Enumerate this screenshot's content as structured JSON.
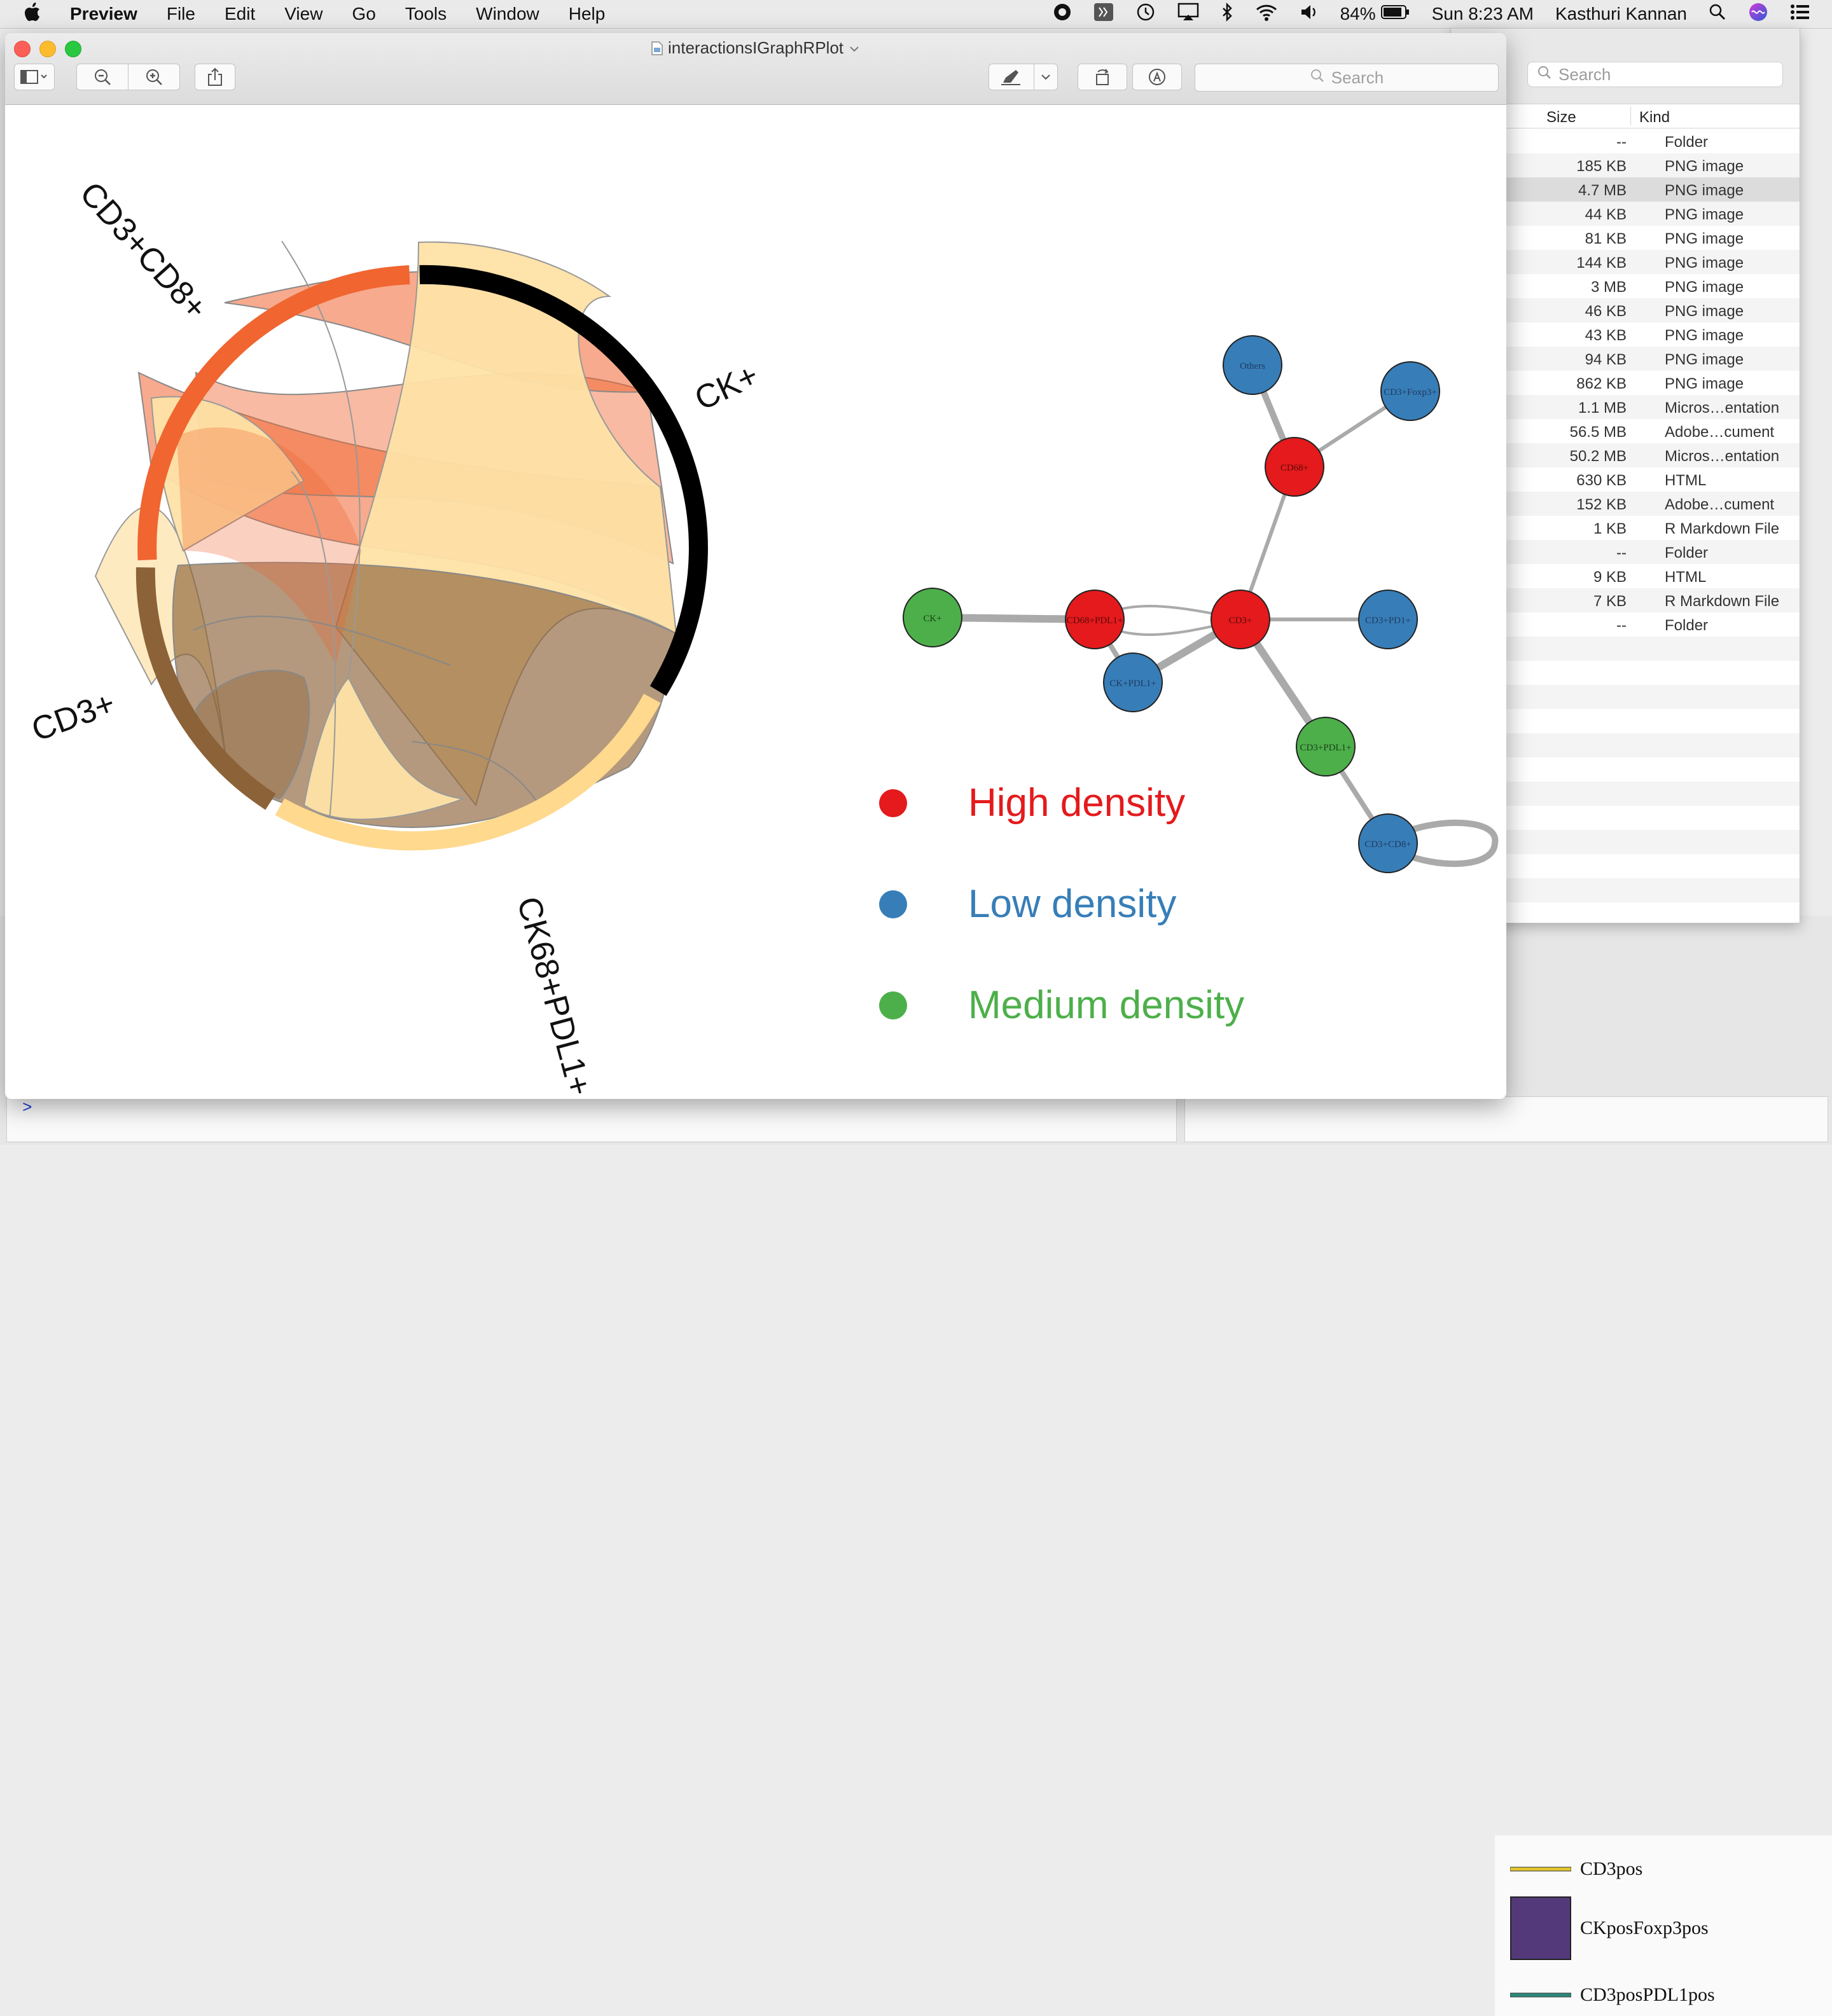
{
  "menubar": {
    "app_name": "Preview",
    "menus": [
      "File",
      "Edit",
      "View",
      "Go",
      "Tools",
      "Window",
      "Help"
    ],
    "battery": "84%",
    "clock": "Sun 8:23 AM",
    "user": "Kasthuri Kannan"
  },
  "preview": {
    "title": "interactionsIGraphRPlot",
    "search_placeholder": "Search"
  },
  "chord": {
    "segments": [
      "CK+",
      "CK68+PDL1+",
      "CD3+",
      "CD3+CD8+"
    ],
    "colors": {
      "CK+": "#000000",
      "CK68+PDL1+": "#fed98e",
      "CD3+": "#8c6239",
      "CD3+CD8+": "#f06530"
    }
  },
  "network": {
    "nodes": [
      "Others",
      "CD3+Foxp3+",
      "CD68+",
      "CK+",
      "CD68+PDL1+",
      "CD3+",
      "CD3+PD1+",
      "CK+PDL1+",
      "CD3+PDL1+",
      "CD3+CD8+"
    ]
  },
  "legend": {
    "high": "High density",
    "low": "Low density",
    "medium": "Medium density",
    "colors": {
      "high": "#e41a1c",
      "low": "#377eb8",
      "medium": "#4daf4a"
    }
  },
  "finder": {
    "search_placeholder": "Search",
    "columns": {
      "size": "Size",
      "kind": "Kind"
    },
    "rows": [
      {
        "size": "--",
        "kind": "Folder"
      },
      {
        "size": "185 KB",
        "kind": "PNG image"
      },
      {
        "size": "4.7 MB",
        "kind": "PNG image"
      },
      {
        "size": "44 KB",
        "kind": "PNG image"
      },
      {
        "size": "81 KB",
        "kind": "PNG image"
      },
      {
        "size": "144 KB",
        "kind": "PNG image"
      },
      {
        "size": "3 MB",
        "kind": "PNG image"
      },
      {
        "size": "46 KB",
        "kind": "PNG image"
      },
      {
        "size": "43 KB",
        "kind": "PNG image"
      },
      {
        "size": "94 KB",
        "kind": "PNG image"
      },
      {
        "size": "862 KB",
        "kind": "PNG image"
      },
      {
        "size": "1.1 MB",
        "kind": "Micros…entation"
      },
      {
        "size": "56.5 MB",
        "kind": "Adobe…cument"
      },
      {
        "size": "50.2 MB",
        "kind": "Micros…entation"
      },
      {
        "size": "630 KB",
        "kind": "HTML"
      },
      {
        "size": "152 KB",
        "kind": "Adobe…cument"
      },
      {
        "size": "1 KB",
        "kind": "R Markdown File"
      },
      {
        "size": "--",
        "kind": "Folder"
      },
      {
        "size": "9 KB",
        "kind": "HTML"
      },
      {
        "size": "7 KB",
        "kind": "R Markdown File"
      },
      {
        "size": "--",
        "kind": "Folder"
      }
    ]
  },
  "background_legend": {
    "items": [
      "CD3pos",
      "CKposFoxp3pos",
      "CD3posPDL1pos"
    ],
    "colors": {
      "CD3pos": "#e5c72f",
      "CKposFoxp3pos": "#54397a",
      "CD3posPDL1pos": "#2a8a7a"
    }
  },
  "console": {
    "prompt": ">"
  }
}
